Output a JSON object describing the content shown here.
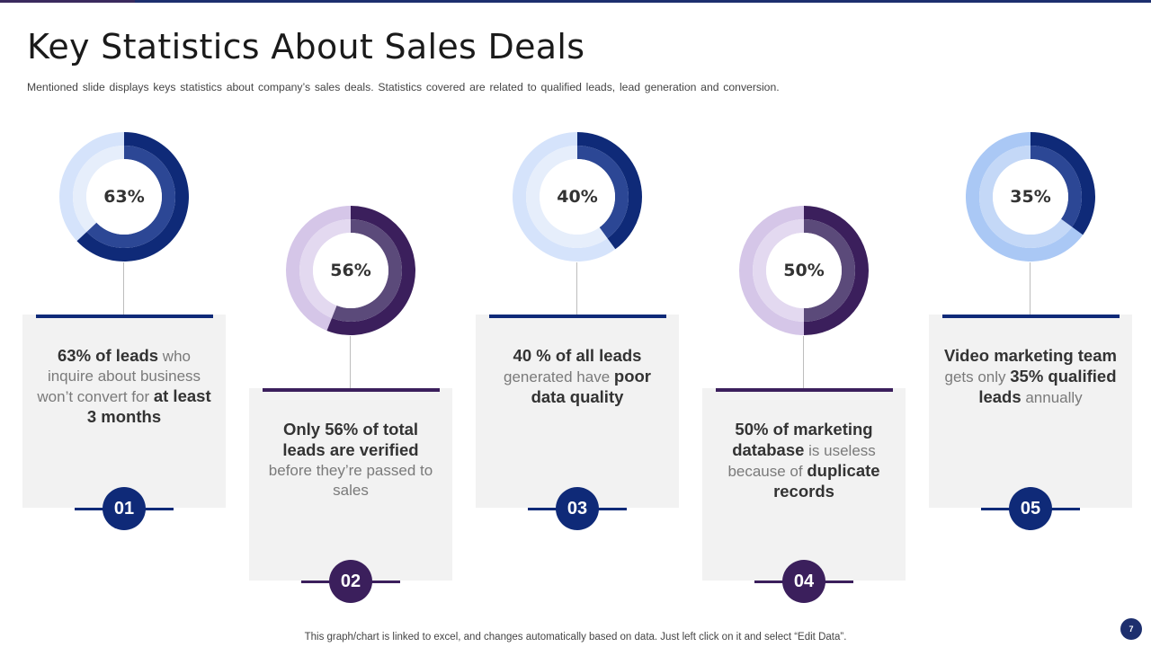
{
  "header": {
    "title": "Key Statistics About Sales Deals",
    "subtitle": "Mentioned slide displays keys statistics about company’s sales deals. Statistics covered are related to qualified leads, lead generation and conversion."
  },
  "chart_data": [
    {
      "type": "pie",
      "donut": true,
      "categories": [
        "Value",
        "Remainder"
      ],
      "values": [
        63,
        37
      ],
      "label": "63%"
    },
    {
      "type": "pie",
      "donut": true,
      "categories": [
        "Value",
        "Remainder"
      ],
      "values": [
        56,
        44
      ],
      "label": "56%"
    },
    {
      "type": "pie",
      "donut": true,
      "categories": [
        "Value",
        "Remainder"
      ],
      "values": [
        40,
        60
      ],
      "label": "40%"
    },
    {
      "type": "pie",
      "donut": true,
      "categories": [
        "Value",
        "Remainder"
      ],
      "values": [
        50,
        50
      ],
      "label": "50%"
    },
    {
      "type": "pie",
      "donut": true,
      "categories": [
        "Value",
        "Remainder"
      ],
      "values": [
        35,
        65
      ],
      "label": "35%"
    }
  ],
  "cards": [
    {
      "number": "01",
      "text": [
        {
          "t": "63% of leads",
          "b": true
        },
        {
          "t": " who inquire about business won’t convert for ",
          "b": false
        },
        {
          "t": "at least 3 months",
          "b": true
        }
      ]
    },
    {
      "number": "02",
      "text": [
        {
          "t": "Only 56% of total leads are verified",
          "b": true
        },
        {
          "t": " before they’re passed to sales",
          "b": false
        }
      ]
    },
    {
      "number": "03",
      "text": [
        {
          "t": "40 % of all leads",
          "b": true
        },
        {
          "t": " generated have ",
          "b": false
        },
        {
          "t": "poor data quality",
          "b": true
        }
      ]
    },
    {
      "number": "04",
      "text": [
        {
          "t": "50% of marketing database",
          "b": true
        },
        {
          "t": " is useless because of ",
          "b": false
        },
        {
          "t": "duplicate records",
          "b": true
        }
      ]
    },
    {
      "number": "05",
      "text": [
        {
          "t": "Video marketing team",
          "b": true
        },
        {
          "t": " gets only ",
          "b": false
        },
        {
          "t": "35% qualified leads",
          "b": true
        },
        {
          "t": " annually",
          "b": false
        }
      ]
    }
  ],
  "colors": {
    "blue_primary": "#0f2a78",
    "blue_inner": "#2c4795",
    "purple_primary": "#3b1f5c",
    "purple_inner": "#5b4a7a",
    "header_bar": "#1d2f6e"
  },
  "footer": {
    "note": "This graph/chart is linked to excel,  and changes automatically based on data. Just left click on it and select “Edit Data”.",
    "page_number": "7"
  }
}
